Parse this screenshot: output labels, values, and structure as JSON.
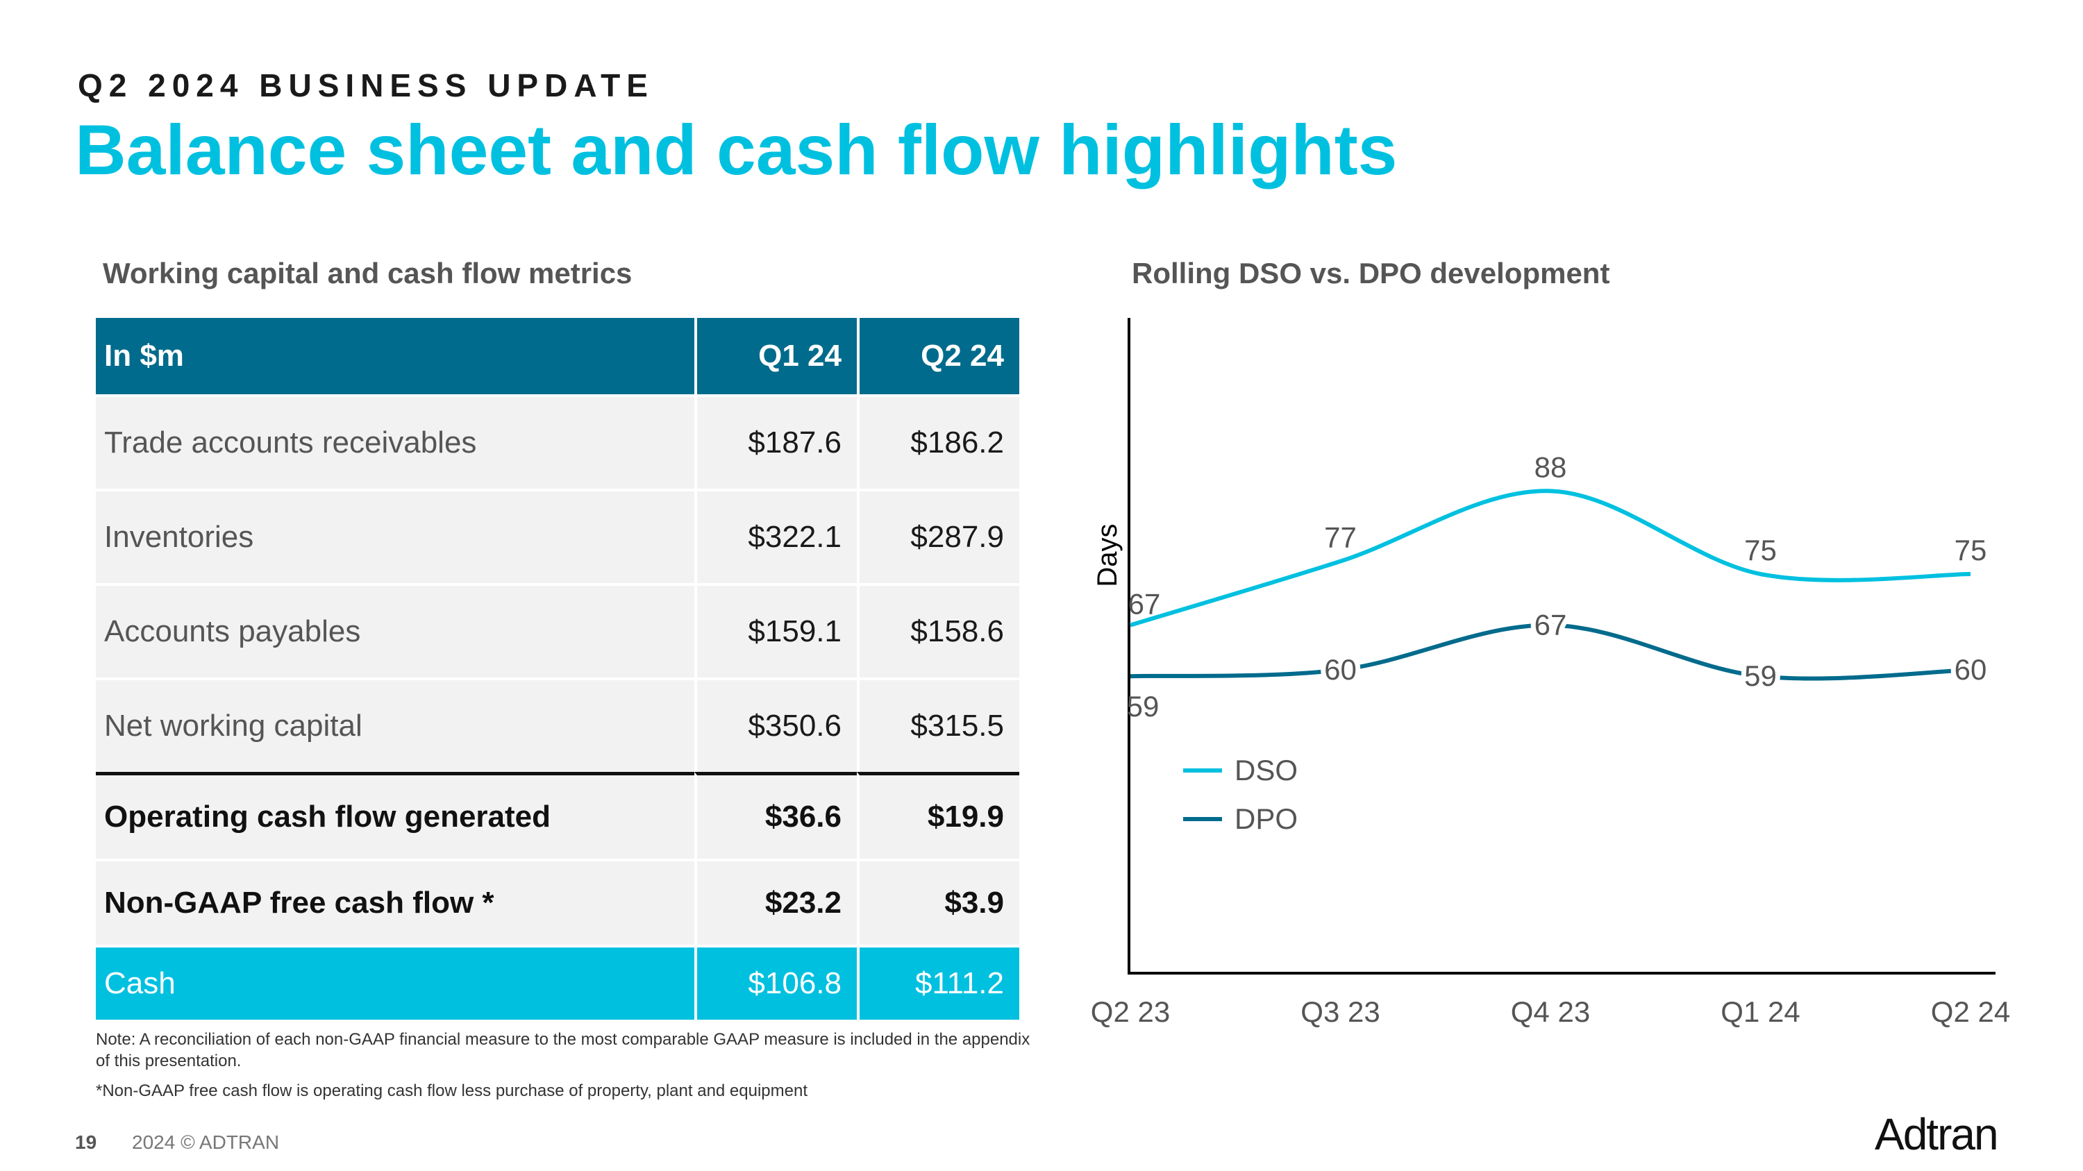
{
  "header": {
    "eyebrow": "Q2 2024 BUSINESS UPDATE",
    "title": "Balance sheet and cash flow highlights"
  },
  "table_section": {
    "title": "Working capital and cash flow metrics",
    "columns": [
      "In $m",
      "Q1 24",
      "Q2 24"
    ],
    "rows": [
      {
        "label": "Trade accounts receivables",
        "q1": "$187.6",
        "q2": "$186.2"
      },
      {
        "label": "Inventories",
        "q1": "$322.1",
        "q2": "$287.9"
      },
      {
        "label": "Accounts payables",
        "q1": "$159.1",
        "q2": "$158.6"
      },
      {
        "label": "Net working capital",
        "q1": "$350.6",
        "q2": "$315.5"
      },
      {
        "label": "Operating cash flow generated",
        "q1": "$36.6",
        "q2": "$19.9"
      },
      {
        "label": "Non-GAAP free cash flow *",
        "q1": "$23.2",
        "q2": "$3.9"
      },
      {
        "label": "Cash",
        "q1": "$106.8",
        "q2": "$111.2"
      }
    ],
    "note": "Note: A reconciliation of each non-GAAP financial measure to the most comparable GAAP measure is included in the appendix of this presentation.",
    "footnote": "*Non-GAAP free cash flow is operating cash flow less purchase of property, plant and equipment"
  },
  "chart_data": {
    "type": "line",
    "title": "Rolling DSO vs. DPO development",
    "xlabel": "",
    "ylabel": "Days",
    "categories": [
      "Q2 23",
      "Q3 23",
      "Q4 23",
      "Q1 24",
      "Q2 24"
    ],
    "series": [
      {
        "name": "DSO",
        "values": [
          67,
          77,
          88,
          75,
          75
        ],
        "color": "#00c0e0"
      },
      {
        "name": "DPO",
        "values": [
          59,
          60,
          67,
          59,
          60
        ],
        "color": "#006b8c"
      }
    ],
    "ylim": [
      0,
      130
    ],
    "grid": false,
    "legend": "middle-left"
  },
  "footer": {
    "page_number": "19",
    "copyright": "2024 © ADTRAN",
    "logo_text": "Adtran"
  },
  "colors": {
    "accent": "#00c0e0",
    "header_blue": "#006b8c",
    "row_bg": "#f2f2f2"
  }
}
